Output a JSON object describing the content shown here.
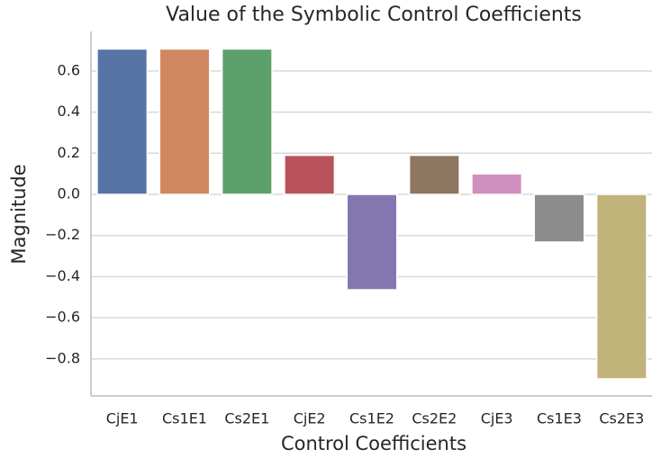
{
  "chart_data": {
    "type": "bar",
    "title": "Value of the Symbolic Control Coefficients",
    "xlabel": "Control Coefficients",
    "ylabel": "Magnitude",
    "categories": [
      "CjE1",
      "Cs1E1",
      "Cs2E1",
      "CjE2",
      "Cs1E2",
      "Cs2E2",
      "CjE3",
      "Cs1E3",
      "Cs2E3"
    ],
    "values": [
      0.707,
      0.707,
      0.707,
      0.19,
      -0.464,
      0.19,
      0.1,
      -0.232,
      -0.897
    ],
    "colors": [
      "#5874a7",
      "#d0875f",
      "#5ca16b",
      "#b85459",
      "#8477b0",
      "#8e7760",
      "#d08fc1",
      "#8c8c8c",
      "#c2b37a"
    ],
    "ylim": [
      -0.98,
      0.792
    ],
    "yticks": [
      {
        "value": -0.8,
        "label": "−0.8"
      },
      {
        "value": -0.6,
        "label": "−0.6"
      },
      {
        "value": -0.4,
        "label": "−0.4"
      },
      {
        "value": -0.2,
        "label": "−0.2"
      },
      {
        "value": 0.0,
        "label": "0.0"
      },
      {
        "value": 0.2,
        "label": "0.2"
      },
      {
        "value": 0.4,
        "label": "0.4"
      },
      {
        "value": 0.6,
        "label": "0.6"
      }
    ],
    "grid": true
  }
}
